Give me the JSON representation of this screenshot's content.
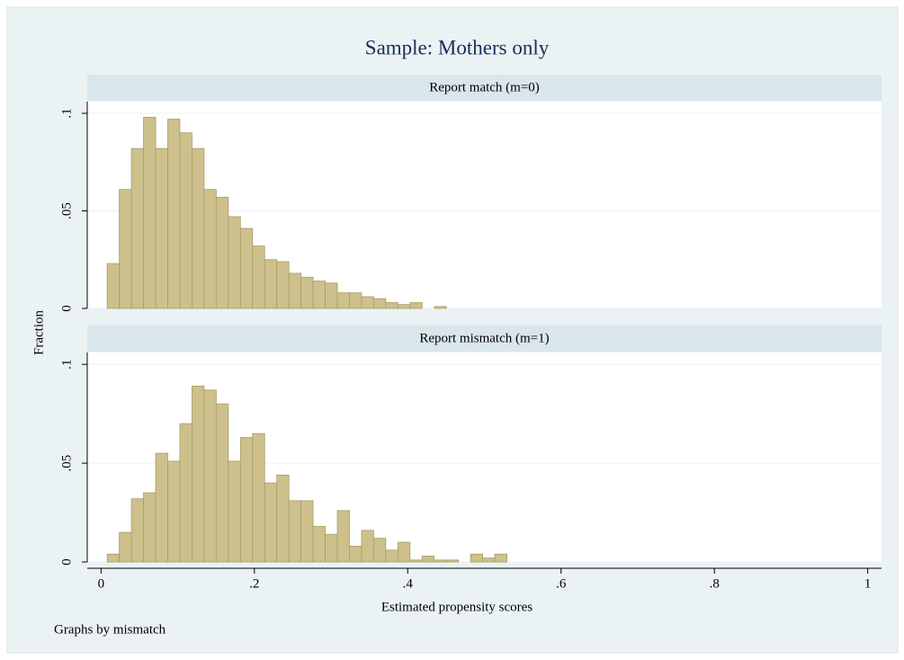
{
  "title": "Sample: Mothers only",
  "x_label": "Estimated propensity scores",
  "y_label": "Fraction",
  "note": "Graphs by mismatch",
  "chart_data": [
    {
      "type": "histogram",
      "title": "Report match (m=0)",
      "color": "#cdc08c",
      "bins": [
        0.008,
        0.0238,
        0.0396,
        0.0554,
        0.0712,
        0.087,
        0.1028,
        0.1186,
        0.1344,
        0.1502,
        0.166,
        0.1818,
        0.1976,
        0.2134,
        0.2292,
        0.245,
        0.2608,
        0.2766,
        0.2924,
        0.3082,
        0.324,
        0.3398,
        0.3556,
        0.3714,
        0.3872,
        0.403,
        0.4188,
        0.4346,
        0.4504
      ],
      "values": [
        0.023,
        0.061,
        0.082,
        0.098,
        0.082,
        0.097,
        0.09,
        0.082,
        0.061,
        0.057,
        0.047,
        0.041,
        0.032,
        0.025,
        0.024,
        0.018,
        0.016,
        0.014,
        0.013,
        0.008,
        0.008,
        0.006,
        0.005,
        0.003,
        0.002,
        0.003,
        0,
        0.001
      ],
      "xlim": [
        -0.018,
        1.018
      ],
      "ylim": [
        0,
        0.106
      ],
      "yticks": [
        {
          "value": 0,
          "label": "0"
        },
        {
          "value": 0.05,
          "label": ".05"
        },
        {
          "value": 0.1,
          "label": ".1"
        }
      ],
      "grid": true
    },
    {
      "type": "histogram",
      "title": "Report mismatch (m=1)",
      "color": "#cdc08c",
      "bins": [
        0.008,
        0.0238,
        0.0396,
        0.0554,
        0.0712,
        0.087,
        0.1028,
        0.1186,
        0.1344,
        0.1502,
        0.166,
        0.1818,
        0.1976,
        0.2134,
        0.2292,
        0.245,
        0.2608,
        0.2766,
        0.2924,
        0.3082,
        0.324,
        0.3398,
        0.3556,
        0.3714,
        0.3872,
        0.403,
        0.4188,
        0.4346,
        0.4504,
        0.4662,
        0.482,
        0.4978,
        0.5136,
        0.5294
      ],
      "values": [
        0.004,
        0.015,
        0.032,
        0.035,
        0.055,
        0.051,
        0.07,
        0.089,
        0.087,
        0.08,
        0.051,
        0.063,
        0.065,
        0.04,
        0.044,
        0.031,
        0.031,
        0.018,
        0.014,
        0.026,
        0.008,
        0.016,
        0.012,
        0.006,
        0.01,
        0.001,
        0.003,
        0.001,
        0.001,
        0,
        0.004,
        0.002,
        0.004
      ],
      "xlim": [
        -0.018,
        1.018
      ],
      "ylim": [
        0,
        0.106
      ],
      "xticks": [
        0,
        {
          "value": 0.2,
          "label": ".2"
        },
        {
          "value": 0.4,
          "label": ".4"
        },
        {
          "value": 0.6,
          "label": ".6"
        },
        {
          "value": 0.8,
          "label": ".8"
        },
        1
      ],
      "yticks": [
        {
          "value": 0,
          "label": "0"
        },
        {
          "value": 0.05,
          "label": ".05"
        },
        {
          "value": 0.1,
          "label": ".1"
        }
      ],
      "grid": true
    }
  ]
}
